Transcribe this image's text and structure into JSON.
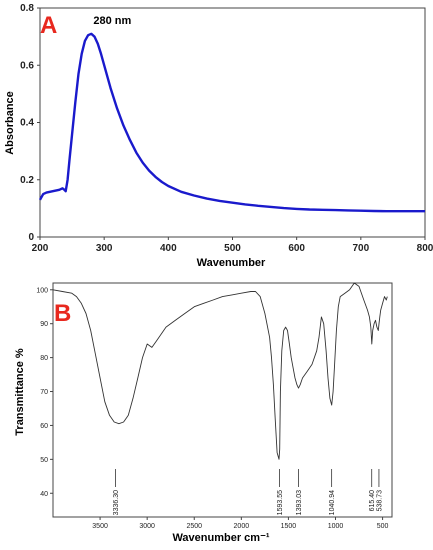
{
  "colors": {
    "panel_label": "#e8281e",
    "uv_line": "#1a1acc",
    "ir_line": "#333333",
    "axis": "#444444"
  },
  "chart_data": [
    {
      "type": "line",
      "panel_label": "A",
      "xlabel": "Wavenumber",
      "ylabel": "Absorbance",
      "xlim": [
        200,
        800
      ],
      "ylim": [
        0,
        0.8
      ],
      "xticks": [
        200,
        300,
        400,
        500,
        600,
        700,
        800
      ],
      "yticks": [
        0,
        0.2,
        0.4,
        0.6,
        0.8
      ],
      "ytick_labels": [
        "0",
        "0.2",
        "0.4",
        "0.6",
        "0.8"
      ],
      "annotation": {
        "text": "280 nm",
        "x": 280,
        "y": 0.71
      },
      "series": [
        {
          "x": [
            200,
            205,
            210,
            220,
            230,
            235,
            238,
            240,
            243,
            246,
            250,
            255,
            260,
            265,
            270,
            275,
            280,
            285,
            290,
            295,
            300,
            310,
            320,
            330,
            340,
            350,
            360,
            370,
            380,
            390,
            400,
            420,
            440,
            460,
            480,
            500,
            520,
            540,
            560,
            580,
            600,
            620,
            640,
            660,
            680,
            700,
            720,
            740,
            760,
            780,
            800
          ],
          "y": [
            0.13,
            0.15,
            0.155,
            0.16,
            0.165,
            0.17,
            0.165,
            0.16,
            0.2,
            0.27,
            0.36,
            0.47,
            0.57,
            0.64,
            0.685,
            0.705,
            0.71,
            0.7,
            0.675,
            0.64,
            0.6,
            0.52,
            0.45,
            0.39,
            0.34,
            0.295,
            0.26,
            0.232,
            0.21,
            0.192,
            0.178,
            0.158,
            0.145,
            0.134,
            0.126,
            0.12,
            0.114,
            0.109,
            0.105,
            0.101,
            0.098,
            0.096,
            0.095,
            0.094,
            0.093,
            0.092,
            0.091,
            0.09,
            0.09,
            0.09,
            0.09
          ]
        }
      ]
    },
    {
      "type": "line",
      "panel_label": "B",
      "xlabel": "Wavenumber cm⁻¹",
      "ylabel": "Transmittance %",
      "x_reversed": true,
      "xlim": [
        4000,
        400
      ],
      "ylim": [
        33,
        102
      ],
      "xticks": [
        3500,
        3000,
        2500,
        2000,
        1500,
        1000,
        500
      ],
      "yticks": [
        40,
        50,
        60,
        70,
        80,
        90,
        100
      ],
      "peak_labels": [
        {
          "x": 3336.3,
          "label": "3336.30"
        },
        {
          "x": 1593.55,
          "label": "1593.55"
        },
        {
          "x": 1393.03,
          "label": "1393.03"
        },
        {
          "x": 1040.94,
          "label": "1040.94"
        },
        {
          "x": 615.4,
          "label": "615.40"
        },
        {
          "x": 538.73,
          "label": "538.73"
        }
      ],
      "series": [
        {
          "x": [
            4000,
            3900,
            3800,
            3750,
            3700,
            3650,
            3600,
            3550,
            3500,
            3450,
            3400,
            3350,
            3300,
            3250,
            3200,
            3150,
            3100,
            3050,
            3000,
            2950,
            2900,
            2800,
            2700,
            2600,
            2500,
            2400,
            2300,
            2200,
            2100,
            2000,
            1900,
            1850,
            1800,
            1750,
            1700,
            1680,
            1660,
            1640,
            1620,
            1600,
            1593,
            1585,
            1570,
            1550,
            1530,
            1510,
            1490,
            1470,
            1450,
            1430,
            1410,
            1393,
            1375,
            1350,
            1300,
            1250,
            1200,
            1175,
            1150,
            1125,
            1100,
            1080,
            1060,
            1040,
            1025,
            1010,
            990,
            970,
            950,
            900,
            850,
            800,
            750,
            700,
            660,
            640,
            625,
            615,
            605,
            590,
            575,
            560,
            545,
            538,
            530,
            520,
            500,
            480,
            460,
            450
          ],
          "y": [
            100,
            99.5,
            99,
            98,
            96,
            93,
            88,
            81,
            74,
            67,
            63,
            61,
            60.5,
            61,
            63,
            68,
            74,
            80,
            84,
            83,
            85,
            89,
            91,
            93,
            95,
            96,
            97,
            98,
            98.5,
            99,
            99.5,
            99.5,
            98,
            93,
            86,
            80,
            72,
            62,
            52,
            50,
            53,
            70,
            82,
            88,
            89,
            88,
            84,
            80,
            77,
            74,
            72,
            71,
            72,
            74,
            76,
            78,
            82,
            86,
            92,
            90,
            82,
            74,
            68,
            66,
            70,
            78,
            88,
            95,
            98,
            99,
            100,
            102,
            101,
            97,
            94,
            92,
            89,
            84,
            88,
            90,
            91,
            89,
            88,
            90,
            92,
            94,
            96,
            98,
            97,
            98
          ]
        }
      ]
    }
  ]
}
